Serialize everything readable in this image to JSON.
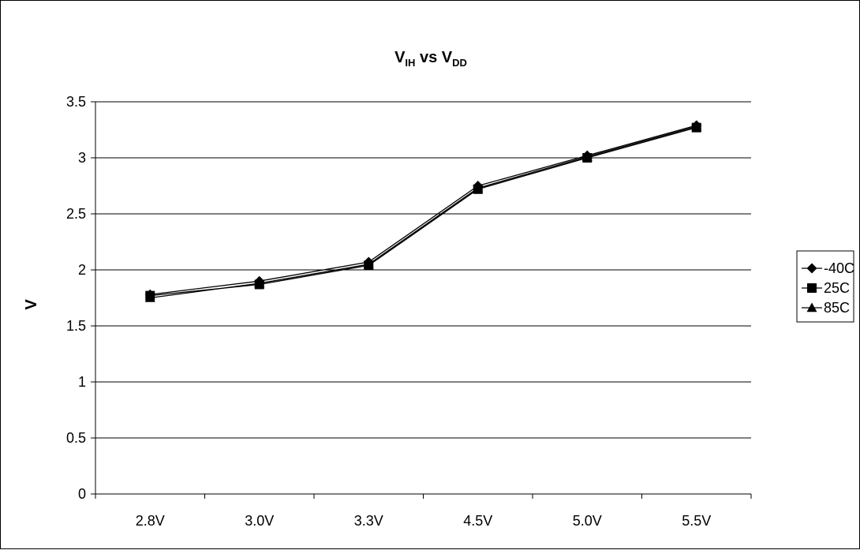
{
  "chart_data": {
    "type": "line",
    "title": {
      "part1_main": "V",
      "part1_sub": "IH",
      "middle": " vs ",
      "part2_main": "V",
      "part2_sub": "DD"
    },
    "xlabel": "",
    "ylabel": "V",
    "categories": [
      "2.8V",
      "3.0V",
      "3.3V",
      "4.5V",
      "5.0V",
      "5.5V"
    ],
    "ylim": [
      0,
      3.5
    ],
    "yticks": [
      0,
      0.5,
      1,
      1.5,
      2,
      2.5,
      3,
      3.5
    ],
    "ytick_labels": [
      "0",
      "0.5",
      "1",
      "1.5",
      "2",
      "2.5",
      "3",
      "3.5"
    ],
    "grid": "horizontal",
    "legend_position": "right",
    "series": [
      {
        "name": "-40C",
        "marker": "diamond",
        "values": [
          1.78,
          1.9,
          2.07,
          2.75,
          3.02,
          3.29
        ]
      },
      {
        "name": "25C",
        "marker": "square",
        "values": [
          1.77,
          1.87,
          2.04,
          2.72,
          3.0,
          3.27
        ]
      },
      {
        "name": "85C",
        "marker": "triangle",
        "values": [
          1.75,
          1.88,
          2.05,
          2.73,
          3.01,
          3.28
        ]
      }
    ],
    "colors": {
      "line": "#000000",
      "grid": "#000000",
      "background": "#ffffff"
    }
  }
}
